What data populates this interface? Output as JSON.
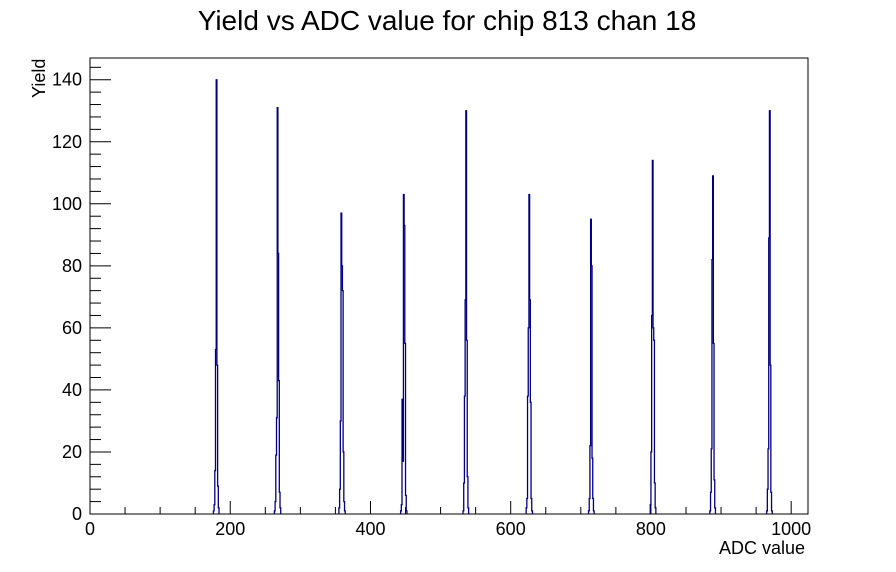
{
  "chart_data": {
    "type": "histogram",
    "title": "Yield vs ADC value for chip 813 chan 18",
    "xlabel": "ADC value",
    "ylabel": "Yield",
    "xlim": [
      0,
      1024
    ],
    "ylim": [
      0,
      147
    ],
    "x_ticks": [
      0,
      200,
      400,
      600,
      800,
      1000
    ],
    "y_ticks": [
      0,
      20,
      40,
      60,
      80,
      100,
      120,
      140
    ],
    "grid": false,
    "legend": "none",
    "line_color": "#000080",
    "peaks": [
      {
        "center": 180,
        "bins": [
          [
            176,
            1
          ],
          [
            177,
            3
          ],
          [
            178,
            14
          ],
          [
            179,
            53
          ],
          [
            180,
            140
          ],
          [
            181,
            48
          ],
          [
            182,
            9
          ],
          [
            183,
            2
          ]
        ]
      },
      {
        "center": 268,
        "bins": [
          [
            263,
            1
          ],
          [
            264,
            4
          ],
          [
            265,
            19
          ],
          [
            266,
            31
          ],
          [
            267,
            131
          ],
          [
            268,
            84
          ],
          [
            269,
            43
          ],
          [
            270,
            7
          ],
          [
            271,
            2
          ]
        ]
      },
      {
        "center": 360,
        "bins": [
          [
            355,
            2
          ],
          [
            356,
            8
          ],
          [
            357,
            30
          ],
          [
            358,
            97
          ],
          [
            359,
            80
          ],
          [
            360,
            72
          ],
          [
            361,
            20
          ],
          [
            362,
            4
          ],
          [
            363,
            1
          ]
        ]
      },
      {
        "center": 449,
        "bins": [
          [
            443,
            1
          ],
          [
            444,
            3
          ],
          [
            445,
            37
          ],
          [
            446,
            17
          ],
          [
            447,
            103
          ],
          [
            448,
            93
          ],
          [
            449,
            55
          ],
          [
            450,
            6
          ],
          [
            451,
            1
          ]
        ]
      },
      {
        "center": 537,
        "bins": [
          [
            532,
            1
          ],
          [
            533,
            10
          ],
          [
            534,
            38
          ],
          [
            535,
            69
          ],
          [
            536,
            130
          ],
          [
            537,
            56
          ],
          [
            538,
            12
          ],
          [
            539,
            2
          ]
        ]
      },
      {
        "center": 627,
        "bins": [
          [
            622,
            2
          ],
          [
            623,
            5
          ],
          [
            624,
            38
          ],
          [
            625,
            60
          ],
          [
            626,
            103
          ],
          [
            627,
            69
          ],
          [
            628,
            36
          ],
          [
            629,
            5
          ],
          [
            630,
            1
          ]
        ]
      },
      {
        "center": 716,
        "bins": [
          [
            711,
            1
          ],
          [
            712,
            5
          ],
          [
            713,
            22
          ],
          [
            714,
            95
          ],
          [
            715,
            80
          ],
          [
            716,
            18
          ],
          [
            717,
            5
          ],
          [
            718,
            1
          ]
        ]
      },
      {
        "center": 806,
        "bins": [
          [
            799,
            3
          ],
          [
            800,
            20
          ],
          [
            801,
            64
          ],
          [
            802,
            114
          ],
          [
            803,
            60
          ],
          [
            804,
            56
          ],
          [
            805,
            10
          ],
          [
            806,
            2
          ]
        ]
      },
      {
        "center": 891,
        "bins": [
          [
            884,
            1
          ],
          [
            885,
            7
          ],
          [
            886,
            21
          ],
          [
            887,
            82
          ],
          [
            888,
            109
          ],
          [
            889,
            55
          ],
          [
            890,
            11
          ],
          [
            891,
            2
          ]
        ]
      },
      {
        "center": 972,
        "bins": [
          [
            965,
            1
          ],
          [
            966,
            8
          ],
          [
            967,
            21
          ],
          [
            968,
            89
          ],
          [
            969,
            130
          ],
          [
            970,
            48
          ],
          [
            971,
            7
          ],
          [
            972,
            1
          ]
        ]
      }
    ]
  }
}
